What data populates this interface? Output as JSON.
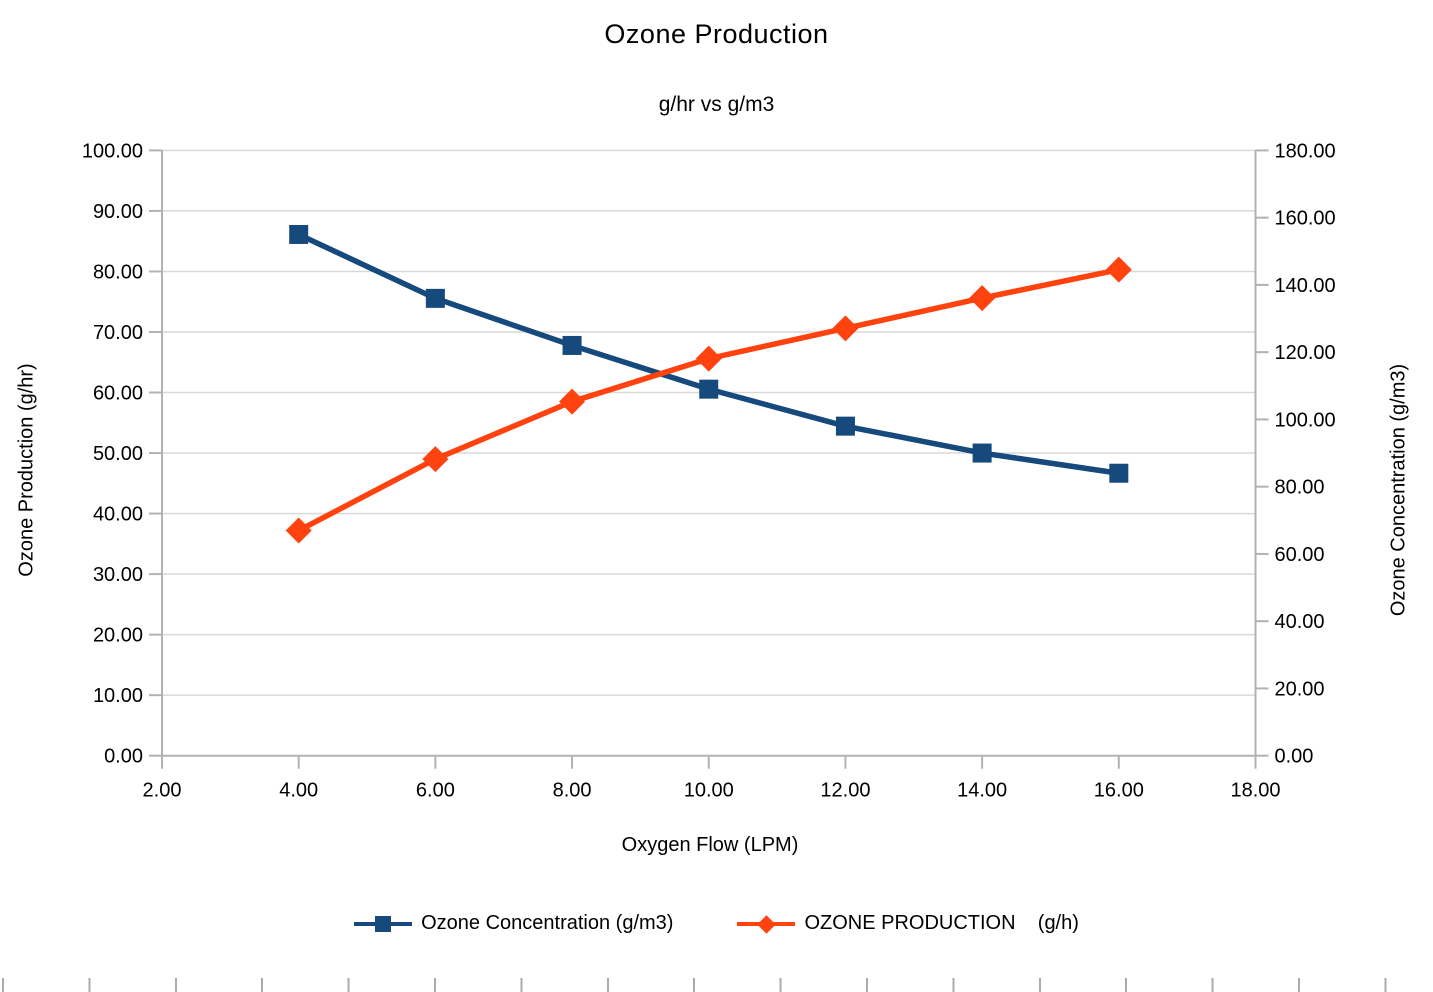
{
  "title": "Ozone Production",
  "subtitle": "g/hr vs g/m3",
  "chart_data": {
    "type": "line",
    "title": "Ozone Production",
    "subtitle": "g/hr vs g/m3",
    "x": [
      4,
      6,
      8,
      10,
      12,
      14,
      16
    ],
    "x_axis": {
      "title": "Oxygen Flow (LPM)",
      "min": 2,
      "max": 18,
      "tick_step": 2,
      "tick_labels": [
        "2.00",
        "4.00",
        "6.00",
        "8.00",
        "10.00",
        "12.00",
        "14.00",
        "16.00",
        "18.00"
      ]
    },
    "left_axis": {
      "title": "Ozone Production (g/hr)",
      "min": 0,
      "max": 100,
      "tick_step": 10,
      "tick_labels": [
        "0.00",
        "10.00",
        "20.00",
        "30.00",
        "40.00",
        "50.00",
        "60.00",
        "70.00",
        "80.00",
        "90.00",
        "100.00"
      ]
    },
    "right_axis": {
      "title": "Ozone Concentration (g/m3)",
      "min": 0,
      "max": 180,
      "tick_step": 20,
      "tick_labels": [
        "0.00",
        "20.00",
        "40.00",
        "60.00",
        "80.00",
        "100.00",
        "120.00",
        "140.00",
        "160.00",
        "180.00"
      ]
    },
    "series": [
      {
        "name": "Ozone Concentration (g/m3)",
        "axis": "right",
        "color": "#16497c",
        "marker": "square",
        "values": [
          155,
          136,
          122,
          109,
          98,
          90,
          84
        ]
      },
      {
        "name": "OZONE PRODUCTION    (g/h)",
        "axis": "left",
        "color": "#ff420e",
        "marker": "diamond",
        "values": [
          37.2,
          49.0,
          58.5,
          65.6,
          70.6,
          75.6,
          80.3
        ]
      }
    ],
    "legend_position": "bottom",
    "grid": "horizontal",
    "grid_color": "#d9d9d9",
    "axis_line_color": "#b2b2b2"
  }
}
